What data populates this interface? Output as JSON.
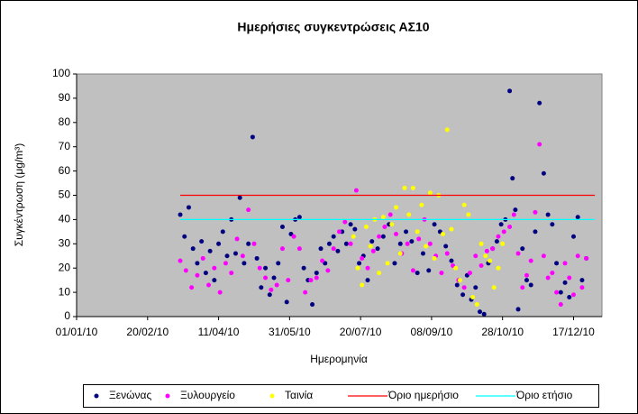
{
  "chart_data": {
    "type": "scatter",
    "title": "Ημερήσιες συγκεντρώσεις ΑΣ10",
    "x_label": "Ημερομηνία",
    "y_label": "Συγκέντρωση (μg/m³)",
    "xlim": [
      "2010-01-01",
      "2011-01-06"
    ],
    "xticks": [
      {
        "value": "2010-01-01",
        "label": "01/01/10"
      },
      {
        "value": "2010-02-20",
        "label": "20/02/10"
      },
      {
        "value": "2010-04-11",
        "label": "11/04/10"
      },
      {
        "value": "2010-05-31",
        "label": "31/05/10"
      },
      {
        "value": "2010-07-20",
        "label": "20/07/10"
      },
      {
        "value": "2010-09-08",
        "label": "08/09/10"
      },
      {
        "value": "2010-10-28",
        "label": "28/10/10"
      },
      {
        "value": "2010-12-17",
        "label": "17/12/10"
      }
    ],
    "ylim": [
      0,
      100
    ],
    "yticks": [
      0,
      10,
      20,
      30,
      40,
      50,
      60,
      70,
      80,
      90,
      100
    ],
    "grid": false,
    "plot_background": "#c0c0c0",
    "legend": "bottom",
    "series": [
      {
        "name": "Ξενώνας",
        "color": "#000080",
        "mode": "markers",
        "x": [
          "2010-03-15",
          "2010-03-18",
          "2010-03-21",
          "2010-03-24",
          "2010-03-27",
          "2010-03-30",
          "2010-04-02",
          "2010-04-05",
          "2010-04-08",
          "2010-04-11",
          "2010-04-14",
          "2010-04-17",
          "2010-04-20",
          "2010-04-23",
          "2010-04-26",
          "2010-04-29",
          "2010-05-02",
          "2010-05-05",
          "2010-05-08",
          "2010-05-11",
          "2010-05-14",
          "2010-05-17",
          "2010-05-20",
          "2010-05-23",
          "2010-05-26",
          "2010-05-29",
          "2010-06-01",
          "2010-06-04",
          "2010-06-07",
          "2010-06-10",
          "2010-06-13",
          "2010-06-16",
          "2010-06-19",
          "2010-06-22",
          "2010-06-25",
          "2010-06-28",
          "2010-07-01",
          "2010-07-04",
          "2010-07-07",
          "2010-07-10",
          "2010-07-13",
          "2010-07-16",
          "2010-07-19",
          "2010-07-22",
          "2010-07-25",
          "2010-07-28",
          "2010-08-01",
          "2010-08-05",
          "2010-08-09",
          "2010-08-13",
          "2010-08-17",
          "2010-08-21",
          "2010-08-25",
          "2010-08-29",
          "2010-09-02",
          "2010-09-06",
          "2010-09-10",
          "2010-09-14",
          "2010-09-18",
          "2010-09-22",
          "2010-09-26",
          "2010-09-30",
          "2010-10-03",
          "2010-10-06",
          "2010-10-09",
          "2010-10-12",
          "2010-10-15",
          "2010-10-18",
          "2010-10-21",
          "2010-10-24",
          "2010-10-27",
          "2010-10-30",
          "2010-11-02",
          "2010-11-04",
          "2010-11-06",
          "2010-11-08",
          "2010-11-11",
          "2010-11-14",
          "2010-11-17",
          "2010-11-20",
          "2010-11-23",
          "2010-11-26",
          "2010-11-29",
          "2010-12-02",
          "2010-12-05",
          "2010-12-08",
          "2010-12-11",
          "2010-12-14",
          "2010-12-17",
          "2010-12-20",
          "2010-12-23",
          "2010-12-26"
        ],
        "values": [
          42,
          33,
          45,
          28,
          22,
          31,
          18,
          27,
          15,
          30,
          35,
          25,
          40,
          26,
          49,
          22,
          30,
          74,
          24,
          12,
          20,
          9,
          16,
          22,
          37,
          6,
          34,
          40,
          41,
          20,
          15,
          5,
          18,
          28,
          22,
          30,
          33,
          27,
          35,
          30,
          38,
          36,
          22,
          25,
          15,
          31,
          28,
          33,
          38,
          22,
          30,
          35,
          31,
          18,
          26,
          19,
          38,
          35,
          29,
          23,
          13,
          9,
          17,
          7,
          12,
          2,
          1,
          22,
          28,
          31,
          38,
          40,
          93,
          57,
          44,
          3,
          28,
          15,
          13,
          35,
          88,
          59,
          42,
          38,
          22,
          10,
          14,
          8,
          33,
          41,
          15,
          24
        ]
      },
      {
        "name": "Ξυλουργείο",
        "color": "#ff00ff",
        "mode": "markers",
        "x": [
          "2010-03-15",
          "2010-03-19",
          "2010-03-23",
          "2010-03-27",
          "2010-03-31",
          "2010-04-04",
          "2010-04-08",
          "2010-04-12",
          "2010-04-16",
          "2010-04-20",
          "2010-04-24",
          "2010-04-28",
          "2010-05-02",
          "2010-05-06",
          "2010-05-10",
          "2010-05-14",
          "2010-05-18",
          "2010-05-22",
          "2010-05-26",
          "2010-05-30",
          "2010-06-03",
          "2010-06-07",
          "2010-06-11",
          "2010-06-15",
          "2010-06-19",
          "2010-06-23",
          "2010-06-27",
          "2010-07-01",
          "2010-07-05",
          "2010-07-09",
          "2010-07-13",
          "2010-07-17",
          "2010-07-21",
          "2010-07-25",
          "2010-07-29",
          "2010-08-02",
          "2010-08-06",
          "2010-08-10",
          "2010-08-14",
          "2010-08-18",
          "2010-08-22",
          "2010-08-26",
          "2010-08-30",
          "2010-09-03",
          "2010-09-07",
          "2010-09-11",
          "2010-09-15",
          "2010-09-19",
          "2010-09-23",
          "2010-09-27",
          "2010-10-01",
          "2010-10-05",
          "2010-10-09",
          "2010-10-13",
          "2010-10-17",
          "2010-10-21",
          "2010-10-25",
          "2010-10-29",
          "2010-11-02",
          "2010-11-05",
          "2010-11-08",
          "2010-11-11",
          "2010-11-14",
          "2010-11-17",
          "2010-11-20",
          "2010-11-23",
          "2010-11-26",
          "2010-11-29",
          "2010-12-02",
          "2010-12-05",
          "2010-12-08",
          "2010-12-11",
          "2010-12-14",
          "2010-12-17",
          "2010-12-20",
          "2010-12-23",
          "2010-12-26"
        ],
        "values": [
          23,
          19,
          12,
          17,
          24,
          13,
          20,
          10,
          22,
          18,
          32,
          25,
          44,
          30,
          20,
          16,
          11,
          13,
          28,
          15,
          33,
          28,
          10,
          15,
          16,
          23,
          19,
          28,
          35,
          39,
          30,
          52,
          24,
          20,
          27,
          33,
          37,
          42,
          34,
          26,
          30,
          19,
          32,
          40,
          30,
          25,
          18,
          26,
          21,
          15,
          12,
          18,
          25,
          21,
          27,
          28,
          33,
          35,
          37,
          42,
          26,
          12,
          17,
          23,
          43,
          71,
          25,
          16,
          18,
          10,
          5,
          22,
          16,
          9,
          25,
          12,
          24
        ]
      },
      {
        "name": "Ταινία",
        "color": "#ffff00",
        "mode": "markers",
        "x": [
          "2010-07-15",
          "2010-07-18",
          "2010-07-21",
          "2010-07-24",
          "2010-07-27",
          "2010-07-30",
          "2010-08-02",
          "2010-08-05",
          "2010-08-08",
          "2010-08-11",
          "2010-08-14",
          "2010-08-17",
          "2010-08-20",
          "2010-08-23",
          "2010-08-26",
          "2010-08-29",
          "2010-09-01",
          "2010-09-04",
          "2010-09-07",
          "2010-09-10",
          "2010-09-13",
          "2010-09-16",
          "2010-09-19",
          "2010-09-22",
          "2010-09-25",
          "2010-09-28",
          "2010-10-01",
          "2010-10-04",
          "2010-10-07",
          "2010-10-10",
          "2010-10-13",
          "2010-10-16",
          "2010-10-19",
          "2010-10-22",
          "2010-10-25",
          "2010-10-28"
        ],
        "values": [
          33,
          20,
          13,
          37,
          29,
          40,
          18,
          41,
          22,
          38,
          45,
          26,
          53,
          42,
          53,
          35,
          46,
          29,
          51,
          24,
          50,
          34,
          77,
          36,
          20,
          15,
          46,
          42,
          8,
          5,
          30,
          25,
          23,
          12,
          20,
          30
        ]
      },
      {
        "name": "Όριο ημερήσιο",
        "color": "#ff0000",
        "mode": "line",
        "x": [
          "2010-03-15",
          "2011-01-01"
        ],
        "values": [
          50,
          50
        ]
      },
      {
        "name": "Όριο ετήσιο",
        "color": "#00ffff",
        "mode": "line",
        "x": [
          "2010-03-15",
          "2011-01-01"
        ],
        "values": [
          40,
          40
        ]
      }
    ]
  }
}
